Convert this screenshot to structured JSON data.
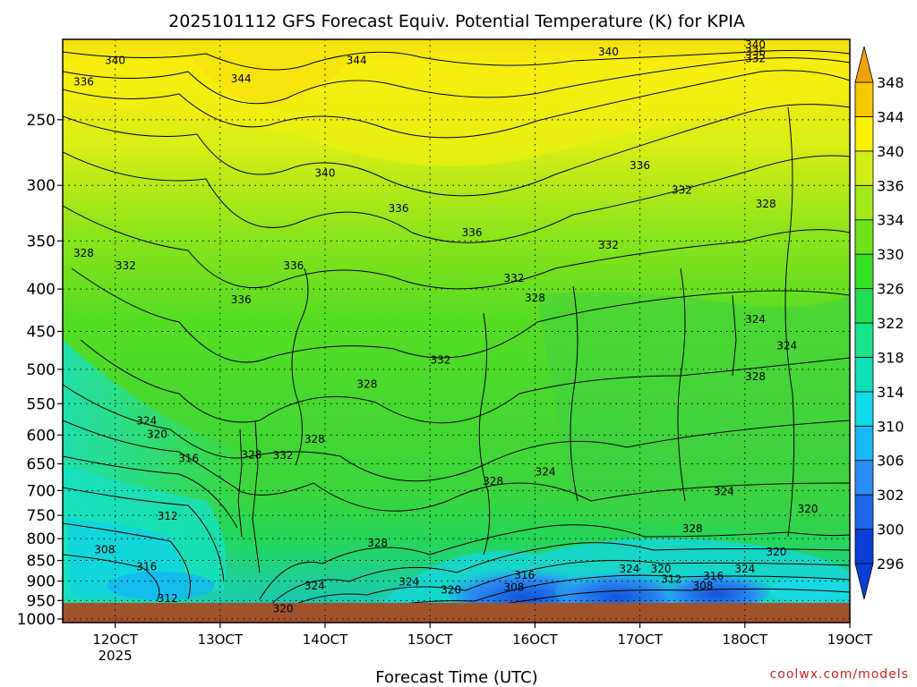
{
  "chart_data": {
    "type": "heatmap",
    "title": "2025101112 GFS Forecast Equiv. Potential Temperature (K) for KPIA",
    "xlabel": "Forecast Time (UTC)",
    "ylabel": "",
    "credit": "coolwx.com/models",
    "x_ticks": [
      {
        "label": "12OCT",
        "sublabel": "2025",
        "day": 12
      },
      {
        "label": "13OCT",
        "day": 13
      },
      {
        "label": "14OCT",
        "day": 14
      },
      {
        "label": "15OCT",
        "day": 15
      },
      {
        "label": "16OCT",
        "day": 16
      },
      {
        "label": "17OCT",
        "day": 17
      },
      {
        "label": "18OCT",
        "day": 18
      },
      {
        "label": "19OCT",
        "day": 19
      }
    ],
    "xlim": [
      11.5,
      19.0
    ],
    "y_ticks": [
      250,
      300,
      350,
      400,
      450,
      500,
      550,
      600,
      650,
      700,
      750,
      800,
      850,
      900,
      950,
      1000
    ],
    "ylim": [
      1010,
      200
    ],
    "y_scale": "log",
    "grid": true,
    "colorbar": {
      "levels": [
        296,
        300,
        302,
        306,
        310,
        314,
        318,
        322,
        326,
        330,
        334,
        336,
        340,
        344,
        348
      ],
      "colors": [
        "#0a3fd6",
        "#1d66ea",
        "#2b8cf4",
        "#17b8f6",
        "#10dbe8",
        "#0fe0b8",
        "#18e38a",
        "#22dd4f",
        "#36de24",
        "#6fe21b",
        "#a3e81a",
        "#d1ee15",
        "#fbf006",
        "#f7c800",
        "#f1a10d"
      ],
      "placement": "right",
      "extend": "both"
    },
    "ground_color": "#a0522d",
    "contour_labels": [
      {
        "text": "340",
        "x": 12.0,
        "p": 212
      },
      {
        "text": "344",
        "x": 13.2,
        "p": 223
      },
      {
        "text": "344",
        "x": 14.3,
        "p": 212
      },
      {
        "text": "336",
        "x": 11.7,
        "p": 225
      },
      {
        "text": "340",
        "x": 16.7,
        "p": 207
      },
      {
        "text": "340",
        "x": 18.1,
        "p": 203
      },
      {
        "text": "336",
        "x": 18.1,
        "p": 207
      },
      {
        "text": "332",
        "x": 18.1,
        "p": 211
      },
      {
        "text": "336",
        "x": 17.0,
        "p": 284
      },
      {
        "text": "340",
        "x": 14.0,
        "p": 290
      },
      {
        "text": "332",
        "x": 17.4,
        "p": 304
      },
      {
        "text": "336",
        "x": 14.7,
        "p": 320
      },
      {
        "text": "336",
        "x": 15.4,
        "p": 342
      },
      {
        "text": "328",
        "x": 18.2,
        "p": 316
      },
      {
        "text": "328",
        "x": 11.7,
        "p": 362
      },
      {
        "text": "332",
        "x": 12.1,
        "p": 375
      },
      {
        "text": "332",
        "x": 16.7,
        "p": 354
      },
      {
        "text": "336",
        "x": 13.7,
        "p": 375
      },
      {
        "text": "332",
        "x": 15.8,
        "p": 388
      },
      {
        "text": "336",
        "x": 13.2,
        "p": 412
      },
      {
        "text": "328",
        "x": 16.0,
        "p": 410
      },
      {
        "text": "324",
        "x": 18.1,
        "p": 435
      },
      {
        "text": "332",
        "x": 15.1,
        "p": 487
      },
      {
        "text": "324",
        "x": 18.4,
        "p": 468
      },
      {
        "text": "328",
        "x": 14.4,
        "p": 521
      },
      {
        "text": "328",
        "x": 18.1,
        "p": 510
      },
      {
        "text": "324",
        "x": 12.3,
        "p": 577
      },
      {
        "text": "320",
        "x": 12.4,
        "p": 599
      },
      {
        "text": "328",
        "x": 13.9,
        "p": 607
      },
      {
        "text": "328",
        "x": 13.3,
        "p": 634
      },
      {
        "text": "332",
        "x": 13.6,
        "p": 635
      },
      {
        "text": "316",
        "x": 12.7,
        "p": 640
      },
      {
        "text": "324",
        "x": 16.1,
        "p": 665
      },
      {
        "text": "328",
        "x": 15.6,
        "p": 682
      },
      {
        "text": "324",
        "x": 17.8,
        "p": 702
      },
      {
        "text": "312",
        "x": 12.5,
        "p": 752
      },
      {
        "text": "320",
        "x": 18.6,
        "p": 737
      },
      {
        "text": "328",
        "x": 17.5,
        "p": 778
      },
      {
        "text": "328",
        "x": 14.5,
        "p": 810
      },
      {
        "text": "308",
        "x": 11.9,
        "p": 825
      },
      {
        "text": "320",
        "x": 18.3,
        "p": 830
      },
      {
        "text": "316",
        "x": 12.3,
        "p": 865
      },
      {
        "text": "324",
        "x": 16.9,
        "p": 870
      },
      {
        "text": "320",
        "x": 17.2,
        "p": 870
      },
      {
        "text": "324",
        "x": 18.0,
        "p": 870
      },
      {
        "text": "316",
        "x": 15.9,
        "p": 885
      },
      {
        "text": "312",
        "x": 17.3,
        "p": 895
      },
      {
        "text": "316",
        "x": 17.7,
        "p": 888
      },
      {
        "text": "324",
        "x": 14.8,
        "p": 902
      },
      {
        "text": "324",
        "x": 13.9,
        "p": 912
      },
      {
        "text": "320",
        "x": 15.2,
        "p": 922
      },
      {
        "text": "308",
        "x": 15.8,
        "p": 916
      },
      {
        "text": "308",
        "x": 17.6,
        "p": 912
      },
      {
        "text": "312",
        "x": 12.5,
        "p": 945
      },
      {
        "text": "320",
        "x": 13.6,
        "p": 972
      }
    ]
  }
}
